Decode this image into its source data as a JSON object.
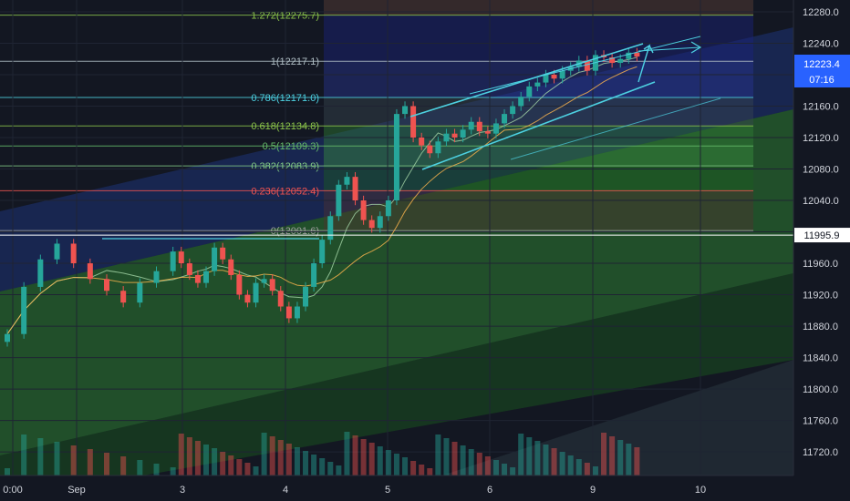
{
  "colors": {
    "bg": "#131722",
    "up": "#26a69a",
    "down": "#ef5350",
    "channel": "#4dd0e1",
    "axis_text": "#d1d4dc",
    "badge_price": "#2962ff",
    "badge_line": "#ffffff"
  },
  "chart_data": {
    "type": "candlestick",
    "title": "",
    "xlabel": "",
    "ylabel": "",
    "ylim": [
      11690,
      12295
    ],
    "y_ticks": [
      "11720.0",
      "11760.0",
      "11800.0",
      "11840.0",
      "11880.0",
      "11920.0",
      "11960.0",
      "12000.0",
      "12040.0",
      "12080.0",
      "12120.0",
      "12160.0",
      "12200.0",
      "12240.0",
      "12280.0"
    ],
    "x_ticks": [
      "0:00",
      "Sep",
      "3",
      "4",
      "5",
      "6",
      "9",
      "10"
    ],
    "price_badge": {
      "value": "12223.4",
      "time_left": "07:16"
    },
    "horizontal_line": {
      "value": 11995.9,
      "label": "11995.9"
    },
    "fib_levels": [
      {
        "label": "1.272(12275.7)",
        "value": 12275.7,
        "color": "#8bc34a"
      },
      {
        "label": "1(12217.1)",
        "value": 12217.1,
        "color": "#b0bec5"
      },
      {
        "label": "0.786(12171.0)",
        "value": 12171.0,
        "color": "#4dd0e1"
      },
      {
        "label": "0.618(12134.8)",
        "value": 12134.8,
        "color": "#8bc34a"
      },
      {
        "label": "0.5(12109.3)",
        "value": 12109.3,
        "color": "#66bb6a"
      },
      {
        "label": "0.382(12083.9)",
        "value": 12083.9,
        "color": "#81c784"
      },
      {
        "label": "0.236(12052.4)",
        "value": 12052.4,
        "color": "#ef5350"
      },
      {
        "label": "0(12001.6)",
        "value": 12001.6,
        "color": "#9e9e9e"
      }
    ],
    "series": [
      {
        "type": "candlestick",
        "x": [
          0,
          0.4,
          0.8,
          1.2,
          1.6,
          2.0,
          2.4,
          2.8,
          3.2,
          3.6,
          4.0,
          4.2,
          4.4,
          4.6,
          4.8,
          5.0,
          5.2,
          5.4,
          5.6,
          5.8,
          6.0,
          6.2,
          6.4,
          6.6,
          6.8,
          7.0,
          7.2,
          7.4,
          7.6,
          7.8,
          8.0,
          8.2,
          8.4,
          8.6,
          8.8,
          9.0,
          9.2,
          9.4,
          9.6,
          9.8,
          10.0,
          10.2,
          10.4,
          10.6,
          10.8,
          11.0,
          11.2,
          11.4,
          11.6,
          11.8,
          12.0,
          12.2,
          12.4,
          12.6,
          12.8,
          13.0,
          13.2,
          13.4,
          13.6,
          13.8,
          14.0,
          14.2,
          14.4,
          14.6,
          14.8,
          15.0,
          15.2
        ],
        "close": [
          11870,
          11930,
          11965,
          11985,
          11960,
          11940,
          11925,
          11910,
          11935,
          11950,
          11975,
          11960,
          11945,
          11935,
          11950,
          11980,
          11965,
          11945,
          11920,
          11910,
          11935,
          11940,
          11925,
          11905,
          11890,
          11905,
          11930,
          11960,
          11990,
          12020,
          12060,
          12070,
          12040,
          12015,
          12005,
          12020,
          12040,
          12150,
          12160,
          12120,
          12110,
          12100,
          12115,
          12125,
          12120,
          12130,
          12140,
          12128,
          12125,
          12138,
          12150,
          12160,
          12172,
          12185,
          12190,
          12200,
          12195,
          12205,
          12210,
          12218,
          12205,
          12225,
          12222,
          12215,
          12220,
          12228,
          12223
        ],
        "name": ""
      }
    ]
  }
}
